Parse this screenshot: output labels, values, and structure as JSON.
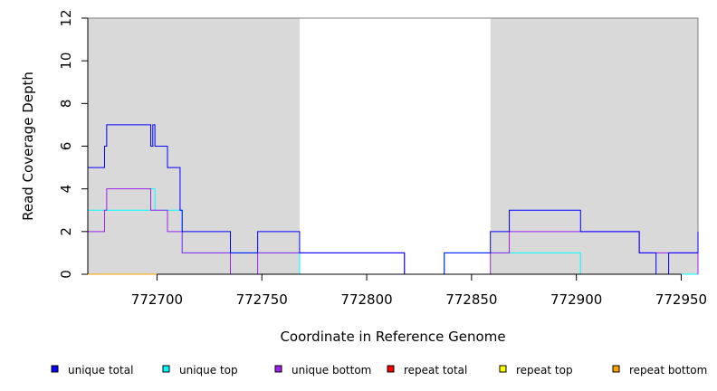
{
  "chart_data": {
    "type": "line",
    "xlabel": "Coordinate in Reference Genome",
    "ylabel": "Read Coverage Depth",
    "xlim": [
      772667,
      772958
    ],
    "ylim": [
      0,
      12
    ],
    "x_ticks": [
      772700,
      772750,
      772800,
      772850,
      772900,
      772950
    ],
    "x_tick_labels": [
      "772700",
      "772750",
      "772800",
      "772850",
      "772900",
      "772950"
    ],
    "y_ticks": [
      0,
      2,
      4,
      6,
      8,
      10,
      12
    ],
    "y_tick_labels": [
      "0",
      "2",
      "4",
      "6",
      "8",
      "10",
      "12"
    ],
    "shaded_regions": [
      {
        "x0": 772667,
        "x1": 772768,
        "color": "#d9d9d9"
      },
      {
        "x0": 772859,
        "x1": 772958,
        "color": "#d9d9d9"
      }
    ],
    "series": [
      {
        "name": "unique total",
        "color": "#0000ff",
        "x": [
          772667,
          772675,
          772676,
          772697,
          772698,
          772699,
          772705,
          772711,
          772712,
          772735,
          772748,
          772768,
          772818,
          772837,
          772859,
          772868,
          772902,
          772930,
          772938,
          772944,
          772958
        ],
        "y": [
          5,
          6,
          7,
          6,
          7,
          6,
          5,
          3,
          2,
          1,
          2,
          1,
          0,
          1,
          2,
          3,
          2,
          1,
          0,
          1,
          2
        ]
      },
      {
        "name": "unique top",
        "color": "#00ffff",
        "x": [
          772667,
          772697,
          772699,
          772712,
          772768,
          772837,
          772902,
          772958
        ],
        "y": [
          3,
          4,
          3,
          1,
          0,
          1,
          0,
          0
        ]
      },
      {
        "name": "unique bottom",
        "color": "#a020f0",
        "x": [
          772667,
          772675,
          772676,
          772697,
          772705,
          772712,
          772735,
          772748,
          772768,
          772818,
          772859,
          772868,
          772930,
          772958
        ],
        "y": [
          2,
          3,
          4,
          3,
          2,
          1,
          0,
          1,
          1,
          0,
          1,
          2,
          1,
          0
        ]
      },
      {
        "name": "repeat total",
        "color": "#ff0000",
        "x": [
          772667,
          772958
        ],
        "y": [
          0,
          0
        ]
      },
      {
        "name": "repeat top",
        "color": "#ffff00",
        "x": [
          772667,
          772958
        ],
        "y": [
          0,
          0
        ]
      },
      {
        "name": "repeat bottom",
        "color": "#ffa500",
        "x": [
          772667,
          772958
        ],
        "y": [
          0,
          0
        ]
      }
    ],
    "legend": [
      {
        "label": "unique total",
        "color": "#0000ff"
      },
      {
        "label": "unique top",
        "color": "#00ffff"
      },
      {
        "label": "unique bottom",
        "color": "#a020f0"
      },
      {
        "label": "repeat total",
        "color": "#ff0000"
      },
      {
        "label": "repeat top",
        "color": "#ffff00"
      },
      {
        "label": "repeat bottom",
        "color": "#ffa500"
      }
    ],
    "legend_position": "bottom",
    "grid": false
  }
}
